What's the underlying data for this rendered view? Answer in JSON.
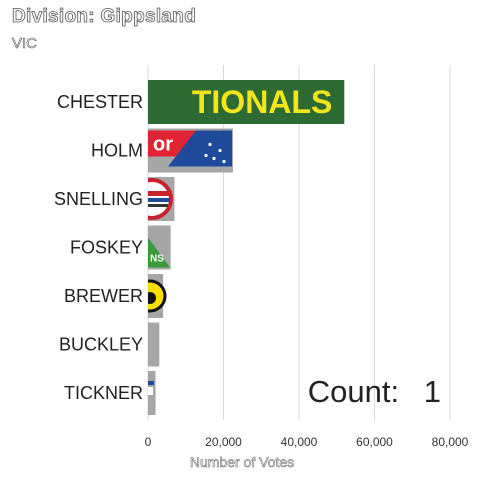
{
  "header": {
    "title": "Division: Gippsland",
    "subtitle": "VIC"
  },
  "counter": {
    "label": "Count:",
    "value": "1"
  },
  "colors": {
    "gridline": "#d9d9d9",
    "bar_default": "#a6a6a6",
    "nationals_green": "#2e6b34",
    "nationals_yellow": "#f2e51c",
    "labor_red": "#e02434",
    "coalition_blue": "#1f4a9c",
    "greens_green": "#3a9a3a",
    "shooters_red": "#c8232c",
    "ldp_yellow": "#f5e000"
  },
  "chart_data": {
    "type": "bar",
    "orientation": "horizontal",
    "title": "Division: Gippsland",
    "subtitle": "VIC",
    "xlabel": "Number of Votes",
    "ylabel": "",
    "xlim": [
      0,
      80000
    ],
    "x_ticks": [
      0,
      20000,
      40000,
      60000,
      80000
    ],
    "x_tick_labels": [
      "0",
      "20,000",
      "40,000",
      "60,000",
      "80,000"
    ],
    "grid": true,
    "categories": [
      "CHESTER",
      "HOLM",
      "SNELLING",
      "FOSKEY",
      "BREWER",
      "BUCKLEY",
      "TICKNER"
    ],
    "values": [
      52000,
      22500,
      7000,
      6000,
      4000,
      3000,
      2000
    ],
    "bar_logos": [
      "nationals-logo",
      "labor-logo",
      "shooters-logo",
      "greens-logo",
      "ldp-logo",
      "",
      "ind-logo"
    ],
    "logo_text": {
      "nationals": "TIONALS",
      "labor": "or",
      "greens": "NS"
    }
  }
}
